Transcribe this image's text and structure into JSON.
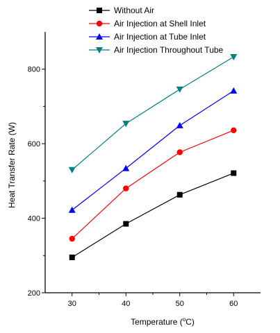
{
  "chart_data": {
    "type": "line",
    "title": "",
    "xlabel_main": "Temperature (",
    "xlabel_sup": "o",
    "xlabel_end": "C)",
    "ylabel": "Heat Transfer Rate (W)",
    "x": [
      30,
      40,
      50,
      60
    ],
    "x_ticks": [
      "30",
      "40",
      "50",
      "60"
    ],
    "xlim": [
      25,
      65
    ],
    "ylim": [
      200,
      900
    ],
    "y_ticks": [
      200,
      400,
      600,
      800
    ],
    "y_tick_labels": [
      "200",
      "400",
      "600",
      "800"
    ],
    "legend_placement": "top",
    "series": [
      {
        "name": "Without Air",
        "color": "#000000",
        "marker": "square",
        "values": [
          295,
          385,
          463,
          521
        ]
      },
      {
        "name": "Air Injection at Shell Inlet",
        "color": "#ff0000",
        "marker": "circle",
        "values": [
          345,
          480,
          577,
          636
        ]
      },
      {
        "name": "Air Injection at Tube Inlet",
        "color": "#0000ff",
        "marker": "triangle-up",
        "values": [
          422,
          534,
          649,
          742
        ]
      },
      {
        "name": "Air Injection Throughout Tube",
        "color": "#008080",
        "marker": "triangle-down",
        "values": [
          530,
          654,
          746,
          833
        ]
      }
    ]
  }
}
